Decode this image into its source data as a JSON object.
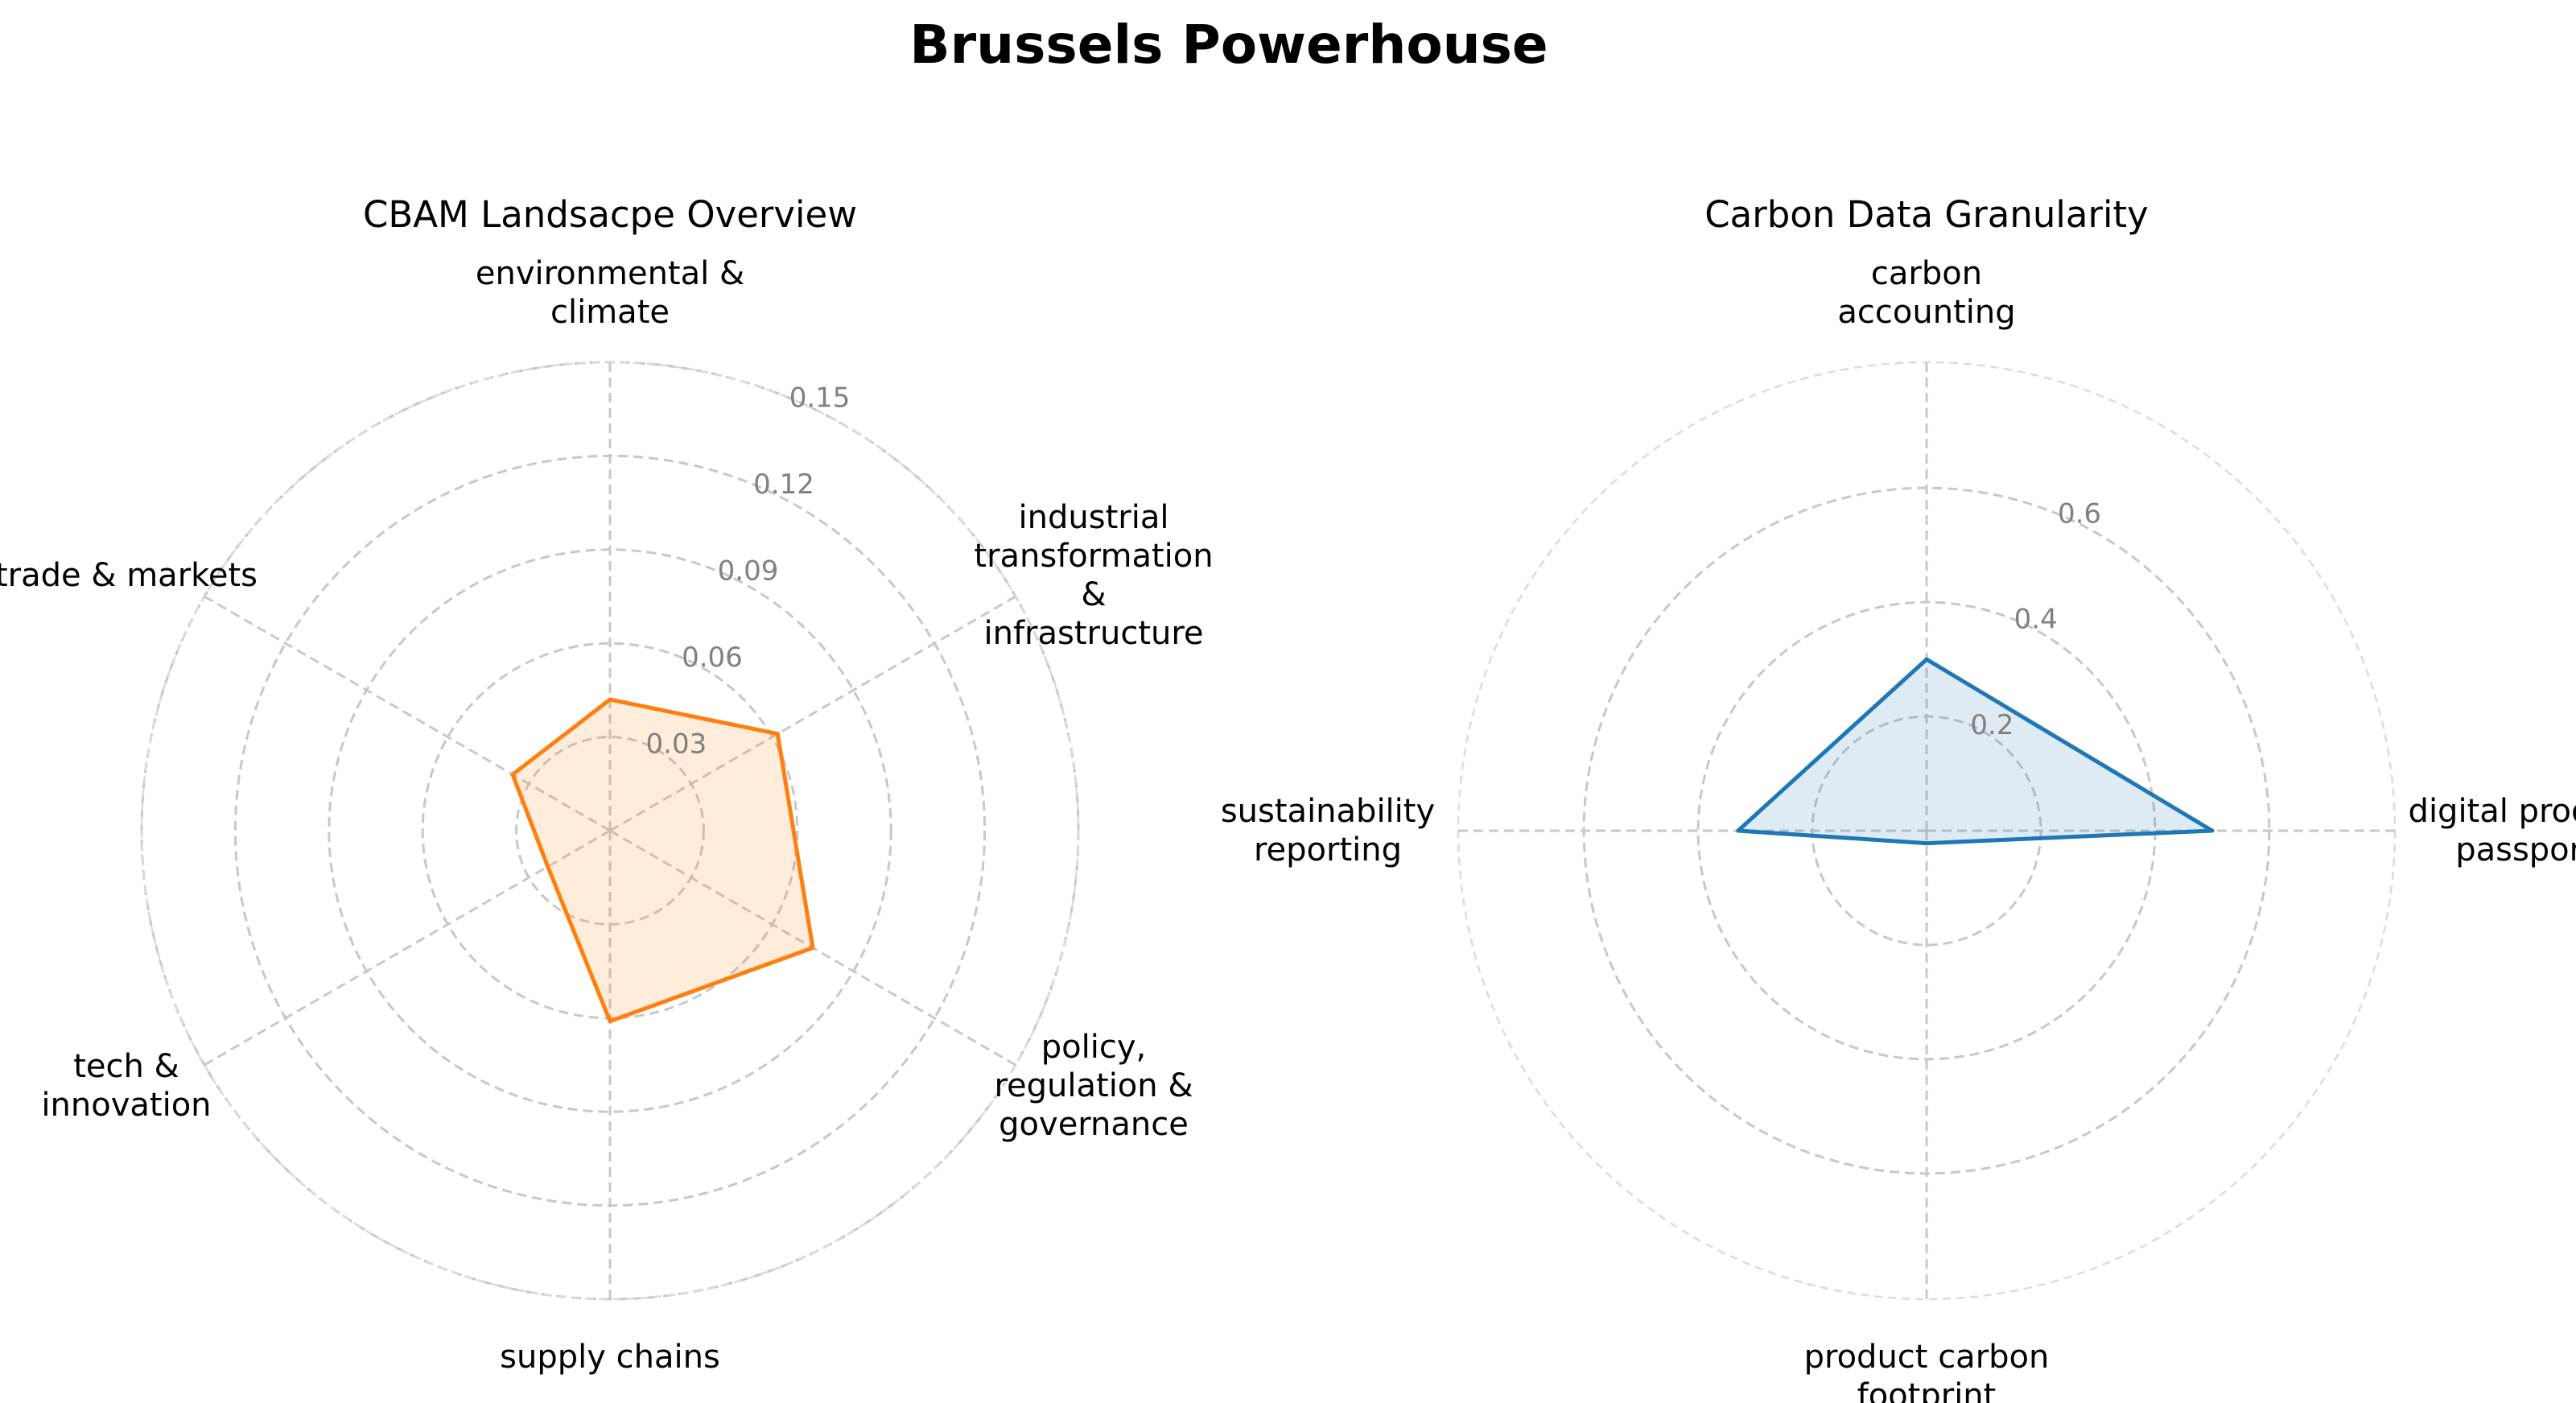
{
  "title": "Brussels Powerhouse",
  "chart_data": [
    {
      "type": "radar",
      "title": "CBAM Landsacpe Overview",
      "color": "#ff7f0e",
      "categories": [
        "environmental &\nclimate",
        "industrial\ntransformation\n&\ninfrastructure",
        "policy,\nregulation &\ngovernance",
        "supply chains",
        "tech &\ninnovation",
        "trade & markets"
      ],
      "values": [
        0.042,
        0.062,
        0.075,
        0.061,
        0.023,
        0.036
      ],
      "rmax": 0.15,
      "ticks": [
        0.03,
        0.06,
        0.09,
        0.12,
        0.15
      ],
      "tick_labels": [
        "0.03",
        "0.06",
        "0.09",
        "0.12",
        "0.15"
      ],
      "grid": true,
      "legend": "none"
    },
    {
      "type": "radar",
      "title": "Carbon Data Granularity",
      "color": "#1f77b4",
      "categories": [
        "carbon\naccounting",
        "digital product\npassport",
        "product carbon\nfootprint",
        "sustainability\nreporting"
      ],
      "values": [
        0.3,
        0.5,
        0.022,
        0.33
      ],
      "rmax": 0.82,
      "ticks": [
        0.2,
        0.4,
        0.6
      ],
      "tick_labels": [
        "0.2",
        "0.4",
        "0.6"
      ],
      "grid": true,
      "legend": "none"
    }
  ]
}
